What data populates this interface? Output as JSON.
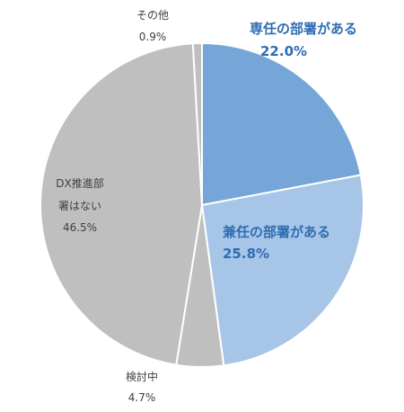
{
  "chart_data": {
    "type": "pie",
    "title": "",
    "start_angle_deg": 0,
    "direction": "clockwise",
    "slices": [
      {
        "label": "専任の部署がある",
        "value": 22.0,
        "value_text": "22.0%",
        "color": "#76A6D8",
        "label_color": "#2E6DB4"
      },
      {
        "label": "兼任の部署がある",
        "value": 25.8,
        "value_text": "25.8%",
        "color": "#A7C5E6",
        "label_color": "#2E6DB4"
      },
      {
        "label": "検討中",
        "value": 4.7,
        "value_text": "4.7%",
        "color": "#BFBFBF",
        "label_color": "#404040"
      },
      {
        "label": "DX推進部署はない",
        "label_lines": [
          "DX推進部",
          "署はない"
        ],
        "value": 46.5,
        "value_text": "46.5%",
        "color": "#BFBFBF",
        "label_color": "#404040"
      },
      {
        "label": "その他",
        "value": 0.9,
        "value_text": "0.9%",
        "color": "#BFBFBF",
        "label_color": "#404040"
      }
    ]
  }
}
